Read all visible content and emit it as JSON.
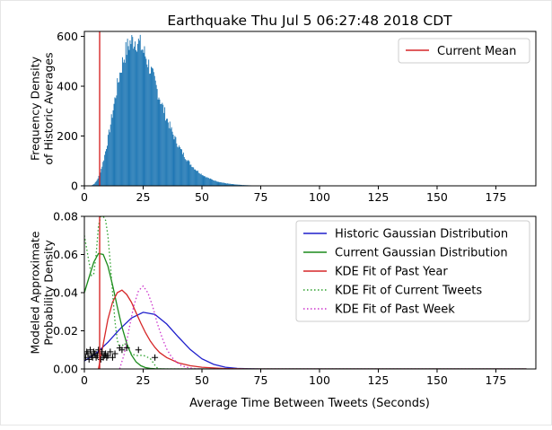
{
  "figure_title": "Earthquake Thu Jul  5 06:27:48 2018 CDT",
  "colors": {
    "histogram": "#1f77b4",
    "current_mean": "#d62728",
    "historic_gauss": "#1f1fcc",
    "current_gauss": "#1a8a1a",
    "kde_year": "#d62728",
    "kde_current": "#2ca02c",
    "kde_week": "#cc33cc",
    "markers": "#000000"
  },
  "chart_data": [
    {
      "type": "histogram",
      "title": "",
      "xlabel": "",
      "ylabel": "Frequency Density\nof Historic Averages",
      "xlim": [
        0,
        192
      ],
      "ylim": [
        0,
        620
      ],
      "xticks": [
        "0",
        "25",
        "50",
        "75",
        "100",
        "125",
        "150",
        "175"
      ],
      "yticks": [
        "0",
        "200",
        "400",
        "600"
      ],
      "grid": false,
      "legend": {
        "position": "top-right",
        "entries": [
          "Current Mean"
        ]
      },
      "distribution": {
        "shape": "right-skewed",
        "mode_x": 21,
        "peak": 585,
        "range": [
          0,
          88
        ]
      },
      "current_mean_x": 6.5,
      "series": [
        {
          "name": "Current Mean",
          "kind": "vertical-line",
          "x": 6.5
        }
      ]
    },
    {
      "type": "line",
      "title": "",
      "xlabel": "Average Time Between Tweets (Seconds)",
      "ylabel": "Modeled Approximate\nProbability Density",
      "xlim": [
        0,
        192
      ],
      "ylim": [
        0,
        0.08
      ],
      "xticks": [
        "0",
        "25",
        "50",
        "75",
        "100",
        "125",
        "150",
        "175"
      ],
      "yticks": [
        "0.00",
        "0.02",
        "0.04",
        "0.06",
        "0.08"
      ],
      "grid": false,
      "legend": {
        "position": "top-right"
      },
      "series": [
        {
          "name": "Historic Gaussian Distribution",
          "style": "solid",
          "x": [
            0,
            5,
            10,
            15,
            20,
            25,
            30,
            35,
            40,
            45,
            50,
            55,
            60,
            65,
            70,
            75,
            80,
            100,
            125,
            150,
            175,
            188
          ],
          "y": [
            0.0042,
            0.0082,
            0.014,
            0.0208,
            0.0267,
            0.0297,
            0.0286,
            0.0236,
            0.0167,
            0.0102,
            0.0053,
            0.0024,
            0.0009,
            0.0003,
            0.0001,
            0,
            0,
            0,
            0,
            0,
            0,
            0
          ]
        },
        {
          "name": "Current Gaussian Distribution",
          "style": "solid",
          "x": [
            0,
            2,
            4,
            6,
            8,
            10,
            12,
            14,
            16,
            18,
            20,
            22,
            24,
            26,
            28,
            30,
            35,
            40,
            50,
            75,
            100,
            125,
            150,
            175,
            188
          ],
          "y": [
            0.04,
            0.048,
            0.056,
            0.0605,
            0.06,
            0.054,
            0.044,
            0.0325,
            0.022,
            0.0134,
            0.0074,
            0.0037,
            0.0017,
            0.0007,
            0.0003,
            0.0001,
            0,
            0,
            0,
            0,
            0,
            0,
            0,
            0,
            0
          ]
        },
        {
          "name": "KDE Fit of Past Year",
          "style": "solid",
          "x": [
            6,
            8,
            10,
            12,
            14,
            16,
            18,
            20,
            22,
            24,
            26,
            28,
            30,
            32,
            35,
            40,
            45,
            50,
            55,
            60,
            65,
            70,
            75,
            80,
            100,
            125,
            150,
            175,
            188
          ],
          "y": [
            0,
            0.013,
            0.026,
            0.035,
            0.04,
            0.0413,
            0.039,
            0.035,
            0.0295,
            0.024,
            0.019,
            0.0147,
            0.0113,
            0.0086,
            0.006,
            0.0032,
            0.0017,
            0.0009,
            0.0005,
            0.0002,
            0.0001,
            0,
            0,
            0,
            0,
            0,
            0,
            0,
            0
          ]
        },
        {
          "name": "KDE Fit of Current Tweets",
          "style": "dotted",
          "x": [
            0,
            2,
            3,
            4,
            5,
            6,
            7,
            8,
            9,
            10,
            11,
            12,
            13,
            14,
            15,
            16,
            17,
            18,
            20,
            22,
            25,
            28,
            30,
            31,
            32,
            35,
            40,
            50,
            75,
            100,
            125,
            150,
            175,
            188
          ],
          "y": [
            0.07,
            0.056,
            0.049,
            0.05,
            0.06,
            0.075,
            0.08,
            0.08,
            0.078,
            0.07,
            0.056,
            0.04,
            0.025,
            0.015,
            0.011,
            0.012,
            0.0135,
            0.012,
            0.008,
            0.007,
            0.0072,
            0.0055,
            0.002,
            0.0005,
            0,
            0,
            0,
            0,
            0,
            0,
            0,
            0,
            0,
            0
          ]
        },
        {
          "name": "KDE Fit of Past Week",
          "style": "dotted",
          "x": [
            15,
            17,
            19,
            21,
            23,
            25,
            27,
            29,
            31,
            33,
            35,
            37,
            39,
            41,
            43,
            45,
            47,
            50,
            55,
            60,
            65,
            70,
            75,
            80,
            100,
            125,
            150,
            175,
            188
          ],
          "y": [
            0,
            0.008,
            0.021,
            0.033,
            0.041,
            0.0435,
            0.04,
            0.033,
            0.024,
            0.0165,
            0.0105,
            0.0064,
            0.0037,
            0.002,
            0.001,
            0.0005,
            0.0002,
            0,
            0,
            0,
            0,
            0,
            0,
            0,
            0,
            0,
            0,
            0,
            0
          ]
        },
        {
          "name": "",
          "style": "markers",
          "x": [
            0.5,
            1,
            1.5,
            2,
            2.5,
            3,
            3.5,
            4,
            4.5,
            5,
            5.5,
            6,
            6.5,
            7,
            7.5,
            8,
            8.5,
            9,
            9.5,
            10,
            11,
            12,
            13,
            15,
            16,
            18,
            23,
            30
          ],
          "y": [
            0.006,
            0.009,
            0.008,
            0.005,
            0.01,
            0.007,
            0.006,
            0.009,
            0.008,
            0.006,
            0.007,
            0.01,
            0.008,
            0.005,
            0.009,
            0.006,
            0.007,
            0.008,
            0.006,
            0.007,
            0.009,
            0.006,
            0.008,
            0.011,
            0.01,
            0.011,
            0.01,
            0.006
          ]
        },
        {
          "name": "",
          "kind": "vertical-line",
          "x": 6.5
        }
      ]
    }
  ]
}
